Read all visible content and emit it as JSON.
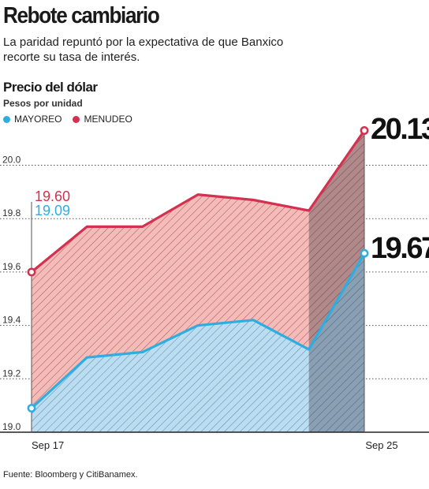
{
  "header": {
    "title": "Rebote cambiario",
    "subtitle": "La paridad repuntó por la expectativa de que Banxico recorte su tasa de interés."
  },
  "chart_heading": "Precio del dólar",
  "chart_units": "Pesos por unidad",
  "source": "Fuente: Bloomberg y CitiBanamex.",
  "colors": {
    "mayoreo": "#2eaee0",
    "menudeo": "#d4304f",
    "mayoreo_fill": "#bcdcf0",
    "menudeo_fill": "#f4bcb8"
  },
  "chart_data": {
    "type": "area",
    "x_tick_labels": [
      "Sep 17",
      "Sep 25"
    ],
    "ylim": [
      19.0,
      20.1
    ],
    "yticks": [
      "19.0",
      "19.2",
      "19.4",
      "19.6",
      "19.8",
      "20.0"
    ],
    "grid": "horizontal dotted",
    "legend_position": "top-left",
    "series": [
      {
        "name": "MENUDEO",
        "values": [
          19.6,
          19.77,
          19.77,
          19.89,
          19.87,
          19.83,
          20.13
        ]
      },
      {
        "name": "MAYOREO",
        "values": [
          19.09,
          19.28,
          19.3,
          19.4,
          19.42,
          19.31,
          19.67
        ]
      }
    ],
    "annotations": {
      "menudeo_start": "19.60",
      "mayoreo_start": "19.09",
      "menudeo_end": "20.13",
      "mayoreo_end": "19.67"
    }
  }
}
